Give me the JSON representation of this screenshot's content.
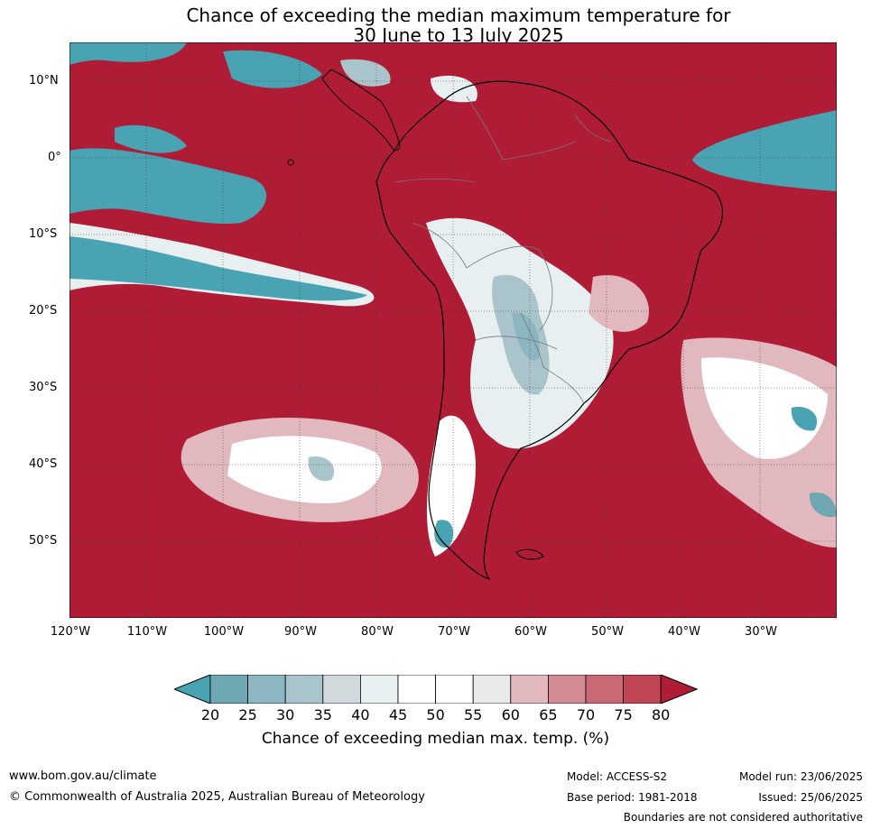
{
  "title_line1": "Chance of exceeding the median maximum temperature for",
  "title_line2": "30 June to 13 July 2025",
  "lat_labels": [
    "10°N",
    "0°",
    "10°S",
    "20°S",
    "30°S",
    "40°S",
    "50°S"
  ],
  "lon_labels": [
    "120°W",
    "110°W",
    "100°W",
    "90°W",
    "80°W",
    "70°W",
    "60°W",
    "50°W",
    "40°W",
    "30°W"
  ],
  "colorbar": {
    "ticks": [
      "20",
      "25",
      "30",
      "35",
      "40",
      "45",
      "50",
      "55",
      "60",
      "65",
      "70",
      "75",
      "80"
    ],
    "colors": [
      "#4aa3b3",
      "#6fa7b3",
      "#8bb6c2",
      "#a9c4ca",
      "#d1d9dc",
      "#e8eff1",
      "#ffffff",
      "#ffffff",
      "#ebeaeb",
      "#e0b8bd",
      "#d28a93",
      "#c96a76",
      "#c04555",
      "#b01c36"
    ],
    "label": "Chance of exceeding median max. temp. (%)"
  },
  "footer": {
    "website": "www.bom.gov.au/climate",
    "copyright": "© Commonwealth of Australia 2025, Australian Bureau of Meteorology",
    "model": "Model: ACCESS-S2",
    "base_period": "Base period: 1981-2018",
    "model_run": "Model run: 23/06/2025",
    "issued": "Issued: 25/06/2025",
    "disclaimer": "Boundaries are not considered authoritative"
  },
  "colors": {
    "above": "#b01c36",
    "below": "#4aa3b3",
    "neutral": "#ffffff"
  }
}
